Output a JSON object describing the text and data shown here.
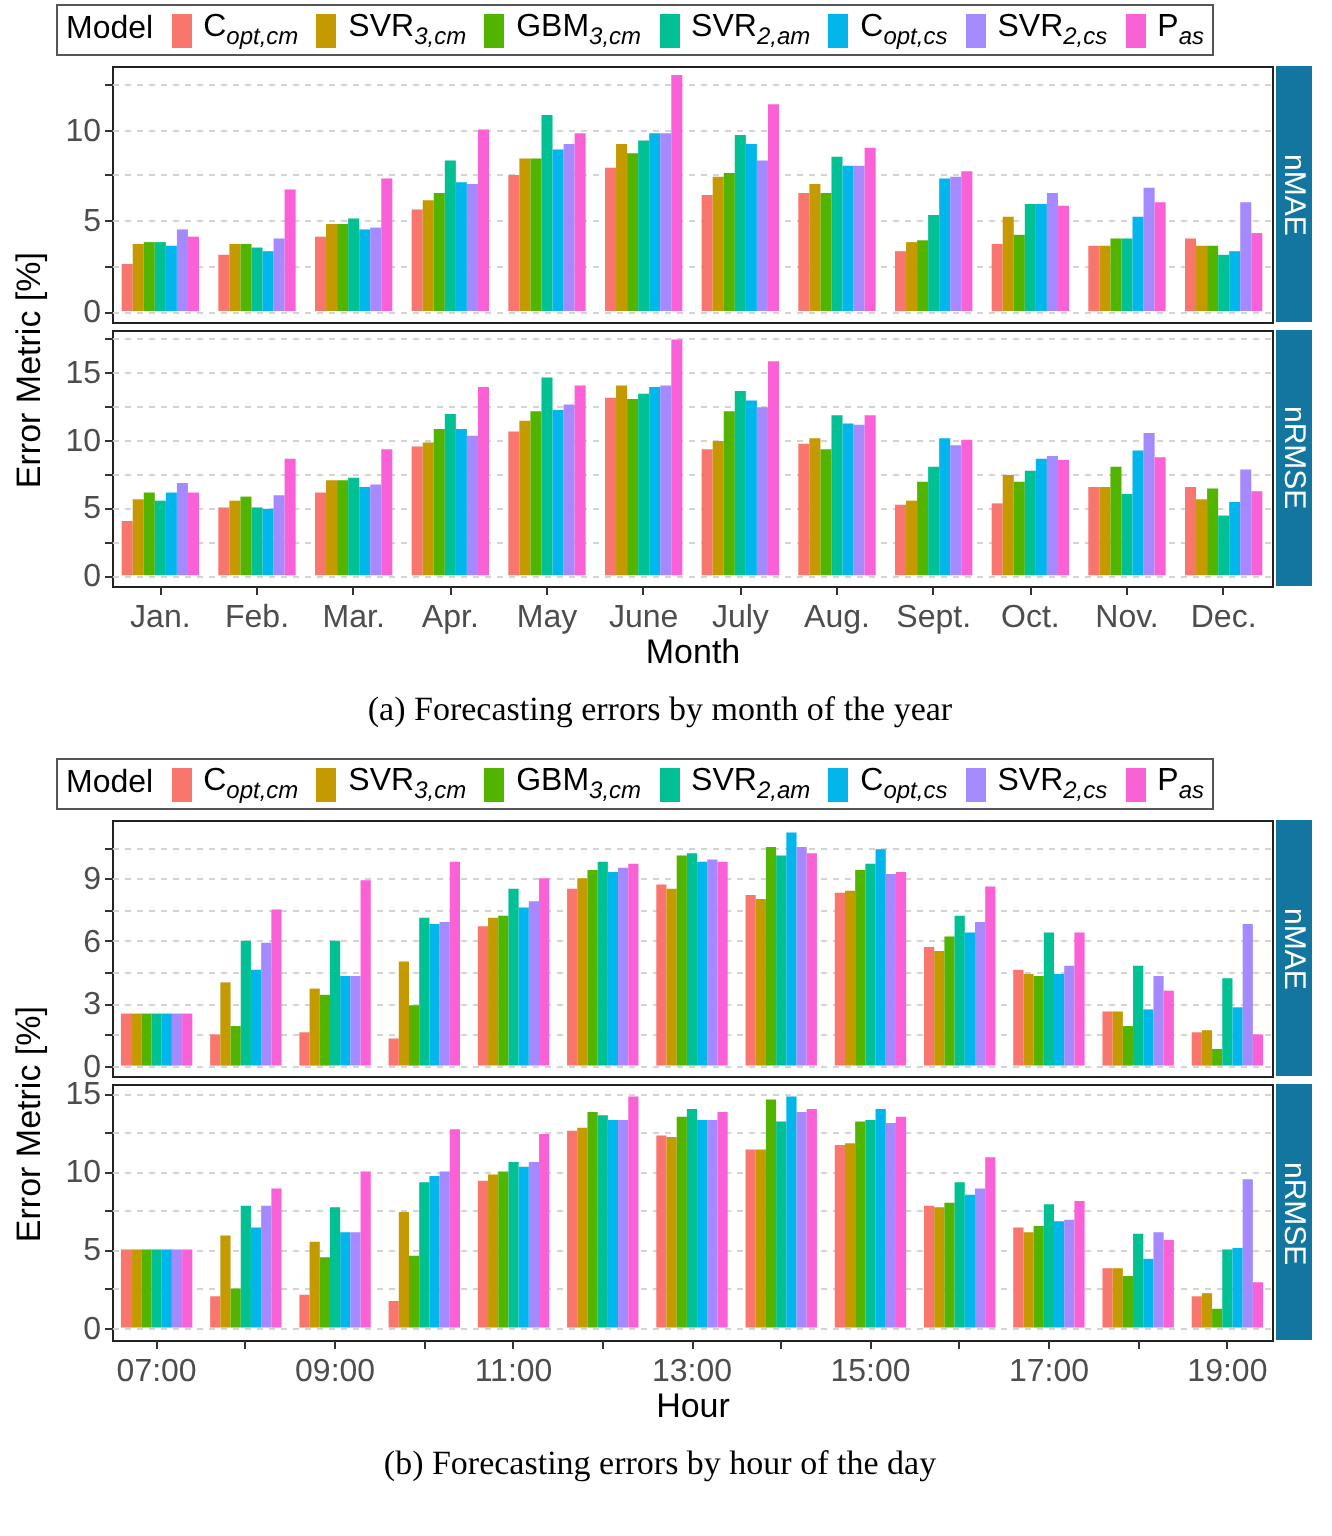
{
  "chart_data": [
    {
      "type": "bar",
      "title": "nMAE",
      "ylabel": "Error Metric [%]",
      "legend_title": "Model",
      "legend": "top",
      "grid": "y",
      "tick_labels": "y",
      "categories": [
        null,
        null,
        null,
        null,
        null,
        null,
        null,
        null,
        null,
        null,
        null,
        null
      ],
      "ylim": [
        -0.6,
        13.5
      ],
      "yticks": [
        0,
        {
          "value": 2.5,
          "label": null
        },
        5,
        {
          "value": 7.5,
          "label": null
        },
        10,
        {
          "value": 12.5,
          "label": null
        }
      ],
      "series": [
        {
          "name": "C$_{opt,cm}$",
          "color": "#f8766d",
          "values": [
            2.6,
            3.1,
            4.1,
            5.6,
            7.5,
            7.9,
            6.4,
            6.5,
            3.3,
            3.7,
            3.6,
            4.0
          ]
        },
        {
          "name": "SVR$_{3,cm}$",
          "color": "#c49a00",
          "values": [
            3.7,
            3.7,
            4.8,
            6.1,
            8.4,
            9.2,
            7.4,
            7.0,
            3.8,
            5.2,
            3.6,
            3.6
          ]
        },
        {
          "name": "GBM$_{3,cm}$",
          "color": "#53b400",
          "values": [
            3.8,
            3.7,
            4.8,
            6.5,
            8.4,
            8.7,
            7.6,
            6.5,
            3.9,
            4.2,
            4.0,
            3.6
          ]
        },
        {
          "name": "SVR$_{2,am}$",
          "color": "#00c094",
          "values": [
            3.8,
            3.5,
            5.1,
            8.3,
            10.8,
            9.4,
            9.7,
            8.5,
            5.3,
            5.9,
            4.0,
            3.1
          ]
        },
        {
          "name": "C$_{opt,cs}$",
          "color": "#00b6eb",
          "values": [
            3.6,
            3.3,
            4.5,
            7.1,
            8.9,
            9.8,
            9.2,
            8.0,
            7.3,
            5.9,
            5.2,
            3.3
          ]
        },
        {
          "name": "SVR$_{2,cs}$",
          "color": "#a58aff",
          "values": [
            4.5,
            4.0,
            4.6,
            7.0,
            9.2,
            9.8,
            8.3,
            8.0,
            7.4,
            6.5,
            6.8,
            6.0
          ]
        },
        {
          "name": "P$_{as}$",
          "color": "#fb61d7",
          "values": [
            4.1,
            6.7,
            7.3,
            10.0,
            9.8,
            13.0,
            11.4,
            9.0,
            7.7,
            5.8,
            6.0,
            4.3
          ]
        }
      ]
    },
    {
      "type": "bar",
      "title": "nRMSE",
      "xlabel": "Month",
      "grid": "y",
      "annotations": [
        "(a) Forecasting errors by month of the year"
      ],
      "categories": [
        "Jan.",
        "Feb.",
        "Mar.",
        "Apr.",
        "May",
        "June",
        "July",
        "Aug.",
        "Sept.",
        "Oct.",
        "Nov.",
        "Dec."
      ],
      "ylim": [
        -0.8,
        18.1
      ],
      "yticks": [
        0,
        {
          "value": 2.5,
          "label": null
        },
        5,
        {
          "value": 7.5,
          "label": null
        },
        10,
        {
          "value": 12.5,
          "label": null
        },
        15,
        {
          "value": 17.5,
          "label": null
        }
      ],
      "series": [
        {
          "color": "#f8766d",
          "values": [
            4.0,
            5.0,
            6.1,
            9.5,
            10.6,
            13.1,
            9.3,
            9.7,
            5.2,
            5.3,
            6.5,
            6.5
          ]
        },
        {
          "color": "#c49a00",
          "values": [
            5.6,
            5.5,
            7.0,
            9.8,
            11.4,
            14.0,
            9.9,
            10.1,
            5.5,
            7.4,
            6.5,
            5.6
          ]
        },
        {
          "color": "#53b400",
          "values": [
            6.1,
            5.8,
            7.0,
            10.8,
            12.1,
            13.0,
            12.1,
            9.3,
            6.9,
            6.9,
            8.0,
            6.4
          ]
        },
        {
          "color": "#00c094",
          "values": [
            5.5,
            5.0,
            7.2,
            11.9,
            14.6,
            13.4,
            13.6,
            11.8,
            8.0,
            7.7,
            6.0,
            4.4
          ]
        },
        {
          "color": "#00b6eb",
          "values": [
            6.1,
            4.9,
            6.5,
            10.8,
            12.2,
            13.9,
            12.9,
            11.2,
            10.1,
            8.6,
            9.2,
            5.4
          ]
        },
        {
          "color": "#a58aff",
          "values": [
            6.8,
            5.9,
            6.7,
            10.3,
            12.6,
            14.0,
            12.4,
            11.1,
            9.6,
            8.8,
            10.5,
            7.8
          ]
        },
        {
          "color": "#fb61d7",
          "values": [
            6.1,
            8.6,
            9.3,
            13.9,
            14.0,
            17.4,
            15.8,
            11.8,
            10.0,
            8.5,
            8.7,
            6.2
          ]
        }
      ]
    },
    {
      "type": "bar",
      "title": "nMAE",
      "ylabel": "Error Metric [%]",
      "legend_title": "Model",
      "legend": "top",
      "grid": "y",
      "tick_labels": "y",
      "categories": [
        null,
        null,
        null,
        null,
        null,
        null,
        null,
        null,
        null,
        null,
        null,
        null,
        null
      ],
      "ylim": [
        -0.5,
        11.8
      ],
      "yticks": [
        0,
        {
          "value": 1.5,
          "label": null
        },
        3,
        {
          "value": 4.5,
          "label": null
        },
        6,
        {
          "value": 7.5,
          "label": null
        },
        9,
        {
          "value": 10.5,
          "label": null
        }
      ],
      "series": [
        {
          "name": "C$_{opt,cm}$",
          "color": "#f8766d",
          "values": [
            2.5,
            1.5,
            1.6,
            1.3,
            6.7,
            8.5,
            8.7,
            8.2,
            8.3,
            5.7,
            4.6,
            2.6,
            1.6
          ]
        },
        {
          "name": "SVR$_{3,cm}$",
          "color": "#c49a00",
          "values": [
            2.5,
            4.0,
            3.7,
            5.0,
            7.1,
            9.0,
            8.5,
            8.0,
            8.4,
            5.5,
            4.4,
            2.6,
            1.7
          ]
        },
        {
          "name": "GBM$_{3,cm}$",
          "color": "#53b400",
          "values": [
            2.5,
            1.9,
            3.4,
            2.9,
            7.2,
            9.4,
            10.1,
            10.5,
            9.4,
            6.2,
            4.3,
            1.9,
            0.8
          ]
        },
        {
          "name": "SVR$_{2,am}$",
          "color": "#00c094",
          "values": [
            2.5,
            6.0,
            6.0,
            7.1,
            8.5,
            9.8,
            10.2,
            10.1,
            9.7,
            7.2,
            6.4,
            4.8,
            4.2
          ]
        },
        {
          "name": "C$_{opt,cs}$",
          "color": "#00b6eb",
          "values": [
            2.5,
            4.6,
            4.3,
            6.8,
            7.6,
            9.3,
            9.8,
            11.2,
            10.4,
            6.4,
            4.4,
            2.7,
            2.8
          ]
        },
        {
          "name": "SVR$_{2,cs}$",
          "color": "#a58aff",
          "values": [
            2.5,
            5.9,
            4.3,
            6.9,
            7.9,
            9.5,
            9.9,
            10.5,
            9.2,
            6.9,
            4.8,
            4.3,
            6.8
          ]
        },
        {
          "name": "P$_{as}$",
          "color": "#fb61d7",
          "values": [
            2.5,
            7.5,
            8.9,
            9.8,
            9.0,
            9.7,
            9.8,
            10.2,
            9.3,
            8.6,
            6.4,
            3.6,
            1.5
          ]
        }
      ]
    },
    {
      "type": "bar",
      "title": "nRMSE",
      "xlabel": "Hour",
      "grid": "y",
      "annotations": [
        "(b) Forecasting errors by hour of the day"
      ],
      "categories": [
        "07:00",
        null,
        "09:00",
        null,
        "11:00",
        null,
        "13:00",
        null,
        "15:00",
        null,
        "17:00",
        null,
        "19:00"
      ],
      "ylim": [
        -0.8,
        15.6
      ],
      "yticks": [
        0,
        {
          "value": 2.5,
          "label": null
        },
        5,
        {
          "value": 7.5,
          "label": null
        },
        10,
        {
          "value": 12.5,
          "label": null
        },
        15
      ],
      "series": [
        {
          "color": "#f8766d",
          "values": [
            5.0,
            2.0,
            2.1,
            1.7,
            9.4,
            12.6,
            12.3,
            11.4,
            11.7,
            7.8,
            6.4,
            3.8,
            2.0
          ]
        },
        {
          "color": "#c49a00",
          "values": [
            5.0,
            5.9,
            5.5,
            7.4,
            9.8,
            12.8,
            12.2,
            11.4,
            11.8,
            7.7,
            6.1,
            3.8,
            2.2
          ]
        },
        {
          "color": "#53b400",
          "values": [
            5.0,
            2.5,
            4.5,
            4.6,
            10.0,
            13.8,
            13.5,
            14.6,
            13.2,
            8.0,
            6.5,
            3.3,
            1.2
          ]
        },
        {
          "color": "#00c094",
          "values": [
            5.0,
            7.8,
            7.7,
            9.3,
            10.6,
            13.6,
            14.0,
            13.2,
            13.3,
            9.3,
            7.9,
            6.0,
            5.0
          ]
        },
        {
          "color": "#00b6eb",
          "values": [
            5.0,
            6.4,
            6.1,
            9.7,
            10.3,
            13.3,
            13.3,
            14.8,
            14.0,
            8.5,
            6.8,
            4.4,
            5.1
          ]
        },
        {
          "color": "#a58aff",
          "values": [
            5.0,
            7.8,
            6.1,
            10.0,
            10.6,
            13.3,
            13.3,
            13.8,
            13.1,
            8.9,
            6.9,
            6.1,
            9.5
          ]
        },
        {
          "color": "#fb61d7",
          "values": [
            5.0,
            8.9,
            10.0,
            12.7,
            12.4,
            14.8,
            13.8,
            14.0,
            13.5,
            10.9,
            8.1,
            5.6,
            2.9
          ]
        }
      ]
    }
  ]
}
